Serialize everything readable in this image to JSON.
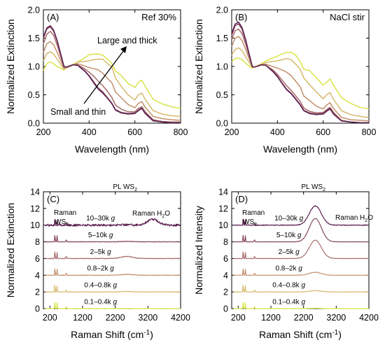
{
  "chart_data": [
    {
      "id": "A",
      "type": "line",
      "panel_label": "(A)",
      "legend_text": "Ref 30%",
      "xlabel": "Wavelength (nm)",
      "ylabel": "Normalized Extinction",
      "xlim": [
        200,
        800
      ],
      "ylim": [
        0,
        2.0
      ],
      "xticks": [
        200,
        400,
        600,
        800
      ],
      "yticks": [
        0.0,
        0.5,
        1.0,
        1.5,
        2.0
      ],
      "ytick_labels": [
        "0.0",
        "0.5",
        "1.0",
        "1.5",
        "2.0"
      ],
      "annotations": [
        "Large and thick",
        "Small and thin"
      ],
      "colors": [
        "#d8e44a",
        "#d6b86a",
        "#c4906c",
        "#a66b6a",
        "#87465e",
        "#5c2050"
      ],
      "series": [
        {
          "x": [
            200,
            215,
            230,
            245,
            260,
            290,
            300,
            330,
            350,
            380,
            400,
            420,
            440,
            460,
            480,
            500,
            515,
            540,
            570,
            600,
            615,
            630,
            645,
            680,
            720,
            760,
            800
          ],
          "values": [
            0.93,
            1.05,
            1.08,
            1.05,
            1.0,
            0.94,
            0.98,
            1.04,
            1.08,
            1.15,
            1.21,
            1.22,
            1.22,
            1.2,
            1.13,
            1.05,
            0.92,
            0.84,
            0.7,
            0.63,
            0.72,
            0.76,
            0.65,
            0.42,
            0.34,
            0.29,
            0.26
          ]
        },
        {
          "x": [
            200,
            215,
            230,
            245,
            260,
            290,
            300,
            330,
            350,
            380,
            400,
            420,
            440,
            460,
            480,
            500,
            515,
            540,
            570,
            600,
            615,
            630,
            645,
            680,
            720,
            760,
            800
          ],
          "values": [
            1.1,
            1.23,
            1.26,
            1.22,
            1.13,
            0.95,
            0.97,
            1.03,
            1.08,
            1.09,
            1.1,
            1.12,
            1.13,
            1.13,
            1.05,
            0.99,
            0.8,
            0.65,
            0.5,
            0.41,
            0.5,
            0.53,
            0.42,
            0.22,
            0.16,
            0.13,
            0.12
          ]
        },
        {
          "x": [
            200,
            215,
            230,
            245,
            260,
            290,
            300,
            330,
            350,
            380,
            400,
            420,
            440,
            460,
            480,
            500,
            515,
            540,
            570,
            600,
            615,
            630,
            645,
            680,
            720,
            760,
            800
          ],
          "values": [
            1.25,
            1.4,
            1.44,
            1.38,
            1.25,
            0.97,
            0.98,
            1.03,
            1.05,
            1.01,
            0.98,
            0.96,
            0.94,
            0.88,
            0.79,
            0.71,
            0.55,
            0.45,
            0.33,
            0.27,
            0.35,
            0.38,
            0.28,
            0.12,
            0.08,
            0.06,
            0.05
          ]
        },
        {
          "x": [
            200,
            215,
            230,
            245,
            260,
            290,
            300,
            330,
            350,
            380,
            400,
            420,
            440,
            460,
            480,
            500,
            515,
            540,
            570,
            600,
            615,
            630,
            645,
            680,
            720,
            760,
            800
          ],
          "values": [
            1.4,
            1.57,
            1.62,
            1.55,
            1.38,
            0.99,
            0.99,
            1.03,
            1.03,
            0.96,
            0.9,
            0.83,
            0.74,
            0.66,
            0.56,
            0.45,
            0.32,
            0.25,
            0.2,
            0.2,
            0.26,
            0.29,
            0.2,
            0.06,
            0.03,
            0.02,
            0.02
          ]
        },
        {
          "x": [
            200,
            215,
            230,
            245,
            260,
            290,
            300,
            330,
            350,
            380,
            400,
            420,
            440,
            460,
            480,
            500,
            515,
            540,
            570,
            600,
            615,
            630,
            645,
            680,
            720,
            760,
            800
          ],
          "values": [
            1.5,
            1.66,
            1.7,
            1.62,
            1.45,
            1.0,
            0.99,
            1.03,
            1.02,
            0.93,
            0.84,
            0.73,
            0.62,
            0.55,
            0.45,
            0.35,
            0.24,
            0.19,
            0.17,
            0.18,
            0.23,
            0.27,
            0.18,
            0.05,
            0.02,
            0.01,
            0.01
          ]
        },
        {
          "x": [
            200,
            215,
            230,
            245,
            260,
            290,
            300,
            330,
            350,
            380,
            400,
            420,
            440,
            460,
            480,
            500,
            515,
            540,
            570,
            600,
            615,
            630,
            645,
            680,
            720,
            760,
            800
          ],
          "values": [
            1.52,
            1.68,
            1.72,
            1.64,
            1.46,
            1.0,
            0.99,
            1.03,
            1.02,
            0.92,
            0.83,
            0.71,
            0.6,
            0.53,
            0.44,
            0.34,
            0.23,
            0.18,
            0.16,
            0.17,
            0.22,
            0.26,
            0.17,
            0.04,
            0.02,
            0.01,
            0.01
          ]
        }
      ]
    },
    {
      "id": "B",
      "type": "line",
      "panel_label": "(B)",
      "legend_text": "NaCl stir",
      "xlabel": "Wavelength (nm)",
      "ylabel": "Normalized Extinction",
      "xlim": [
        200,
        800
      ],
      "ylim": [
        0,
        2.0
      ],
      "xticks": [
        200,
        400,
        600,
        800
      ],
      "yticks": [
        0.0,
        0.5,
        1.0,
        1.5,
        2.0
      ],
      "ytick_labels": [
        "0.0",
        "0.5",
        "1.0",
        "1.5",
        "2.0"
      ],
      "colors": [
        "#d8e44a",
        "#d6b86a",
        "#c4906c",
        "#a66b6a",
        "#87465e",
        "#5c2050"
      ],
      "series": [
        {
          "x": [
            200,
            215,
            230,
            245,
            260,
            290,
            300,
            330,
            350,
            380,
            400,
            420,
            440,
            460,
            480,
            500,
            515,
            540,
            570,
            600,
            615,
            630,
            645,
            680,
            720,
            760,
            800
          ],
          "values": [
            1.08,
            1.14,
            1.15,
            1.12,
            1.06,
            0.97,
            0.99,
            1.05,
            1.1,
            1.15,
            1.18,
            1.22,
            1.25,
            1.25,
            1.2,
            1.08,
            0.95,
            0.93,
            0.8,
            0.67,
            0.72,
            0.78,
            0.67,
            0.45,
            0.35,
            0.28,
            0.25
          ]
        },
        {
          "x": [
            200,
            215,
            230,
            245,
            260,
            290,
            300,
            330,
            350,
            380,
            400,
            420,
            440,
            460,
            480,
            500,
            515,
            540,
            570,
            600,
            615,
            630,
            645,
            680,
            720,
            760,
            800
          ],
          "values": [
            1.2,
            1.3,
            1.33,
            1.28,
            1.18,
            0.98,
            0.99,
            1.04,
            1.07,
            1.09,
            1.1,
            1.12,
            1.14,
            1.12,
            1.04,
            0.95,
            0.8,
            0.68,
            0.55,
            0.43,
            0.5,
            0.54,
            0.42,
            0.22,
            0.15,
            0.12,
            0.1
          ]
        },
        {
          "x": [
            200,
            215,
            230,
            245,
            260,
            290,
            300,
            330,
            350,
            380,
            400,
            420,
            440,
            460,
            480,
            500,
            515,
            540,
            570,
            600,
            615,
            630,
            645,
            680,
            720,
            760,
            800
          ],
          "values": [
            1.35,
            1.5,
            1.53,
            1.46,
            1.31,
            0.99,
            0.99,
            1.03,
            1.04,
            1.0,
            0.97,
            0.94,
            0.9,
            0.84,
            0.74,
            0.64,
            0.48,
            0.4,
            0.3,
            0.25,
            0.32,
            0.36,
            0.26,
            0.1,
            0.06,
            0.05,
            0.04
          ]
        },
        {
          "x": [
            200,
            215,
            230,
            245,
            260,
            290,
            300,
            330,
            350,
            380,
            400,
            420,
            440,
            460,
            480,
            500,
            515,
            540,
            570,
            600,
            615,
            630,
            645,
            680,
            720,
            760,
            800
          ],
          "values": [
            1.48,
            1.63,
            1.66,
            1.58,
            1.41,
            1.0,
            0.99,
            1.03,
            1.02,
            0.94,
            0.86,
            0.76,
            0.66,
            0.58,
            0.48,
            0.38,
            0.27,
            0.21,
            0.18,
            0.19,
            0.24,
            0.28,
            0.19,
            0.05,
            0.02,
            0.01,
            0.01
          ]
        },
        {
          "x": [
            200,
            215,
            230,
            245,
            260,
            290,
            300,
            330,
            350,
            380,
            400,
            420,
            440,
            460,
            480,
            500,
            515,
            540,
            570,
            600,
            615,
            630,
            645,
            680,
            720,
            760,
            800
          ],
          "values": [
            1.55,
            1.72,
            1.75,
            1.66,
            1.47,
            1.0,
            0.99,
            1.03,
            1.02,
            0.92,
            0.83,
            0.71,
            0.6,
            0.53,
            0.43,
            0.33,
            0.23,
            0.18,
            0.16,
            0.17,
            0.22,
            0.26,
            0.17,
            0.04,
            0.02,
            0.01,
            0.01
          ]
        },
        {
          "x": [
            200,
            215,
            230,
            245,
            260,
            290,
            300,
            330,
            350,
            380,
            400,
            420,
            440,
            460,
            480,
            500,
            515,
            540,
            570,
            600,
            615,
            630,
            645,
            680,
            720,
            760,
            800
          ],
          "values": [
            1.58,
            1.75,
            1.78,
            1.69,
            1.49,
            1.0,
            0.99,
            1.03,
            1.02,
            0.91,
            0.82,
            0.7,
            0.59,
            0.52,
            0.42,
            0.32,
            0.22,
            0.17,
            0.15,
            0.16,
            0.21,
            0.25,
            0.16,
            0.04,
            0.02,
            0.01,
            0.01
          ]
        }
      ]
    },
    {
      "id": "C",
      "type": "line",
      "panel_label": "(C)",
      "xlabel": "Raman Shift (cm",
      "xlabel_sup": "-1",
      "xlabel_tail": ")",
      "ylabel": "Normalized Extinction",
      "xlim": [
        0,
        4200
      ],
      "ylim": [
        0,
        14
      ],
      "xticks": [
        200,
        1200,
        2200,
        3200,
        4200
      ],
      "yticks": [
        0,
        2,
        4,
        6,
        8,
        10,
        12,
        14
      ],
      "colors": [
        "#d8e44a",
        "#d6b86a",
        "#c4906c",
        "#a66b6a",
        "#87465e",
        "#5c2050"
      ],
      "labels": {
        "raman": "Raman",
        "ws": "WS",
        "pl": "PL WS",
        "raman_h2o": "Raman H",
        "h2o_tail": "O",
        "sub2": "2"
      },
      "series": [
        {
          "name": "0.1–0.4k",
          "offset": 0,
          "pl_amp": 0.02,
          "h2o_amp": 0.0,
          "noise": 0.05
        },
        {
          "name": "0.4–0.8k",
          "offset": 2,
          "pl_amp": 0.05,
          "h2o_amp": 0.0,
          "noise": 0.05
        },
        {
          "name": "0.8–2k",
          "offset": 4,
          "pl_amp": 0.1,
          "h2o_amp": 0.0,
          "noise": 0.06
        },
        {
          "name": "2–5k",
          "offset": 6,
          "pl_amp": 0.25,
          "h2o_amp": 0.0,
          "noise": 0.06
        },
        {
          "name": "5–10k",
          "offset": 8,
          "pl_amp": 0.05,
          "h2o_amp": 0.0,
          "noise": 0.06
        },
        {
          "name": "10–30k",
          "offset": 10,
          "pl_amp": 0.05,
          "h2o_amp": 0.7,
          "noise": 0.25
        }
      ]
    },
    {
      "id": "D",
      "type": "line",
      "panel_label": "(D)",
      "xlabel": "Raman Shift (cm",
      "xlabel_sup": "-1",
      "xlabel_tail": ")",
      "ylabel": "Normalized Intensity",
      "xlim": [
        0,
        4200
      ],
      "ylim": [
        0,
        14
      ],
      "xticks": [
        200,
        1200,
        2200,
        3200,
        4200
      ],
      "yticks": [
        0,
        2,
        4,
        6,
        8,
        10,
        12,
        14
      ],
      "colors": [
        "#d8e44a",
        "#d6b86a",
        "#c4906c",
        "#a66b6a",
        "#87465e",
        "#5c2050"
      ],
      "labels": {
        "raman": "Raman",
        "ws": "WS",
        "pl": "PL WS",
        "raman_h2o": "Raman H",
        "h2o_tail": "O",
        "sub2": "2"
      },
      "series": [
        {
          "name": "0.1–0.4k",
          "offset": 0,
          "pl_amp": 0.05,
          "h2o_amp": 0.0,
          "noise": 0.03
        },
        {
          "name": "0.4–0.8k",
          "offset": 2,
          "pl_amp": 0.15,
          "h2o_amp": 0.0,
          "noise": 0.03
        },
        {
          "name": "0.8–2k",
          "offset": 4,
          "pl_amp": 0.35,
          "h2o_amp": 0.0,
          "noise": 0.03
        },
        {
          "name": "2–5k",
          "offset": 6,
          "pl_amp": 2.2,
          "h2o_amp": 0.0,
          "noise": 0.03
        },
        {
          "name": "5–10k",
          "offset": 8,
          "pl_amp": 2.8,
          "h2o_amp": 0.0,
          "noise": 0.03
        },
        {
          "name": "10–30k",
          "offset": 10,
          "pl_amp": 2.3,
          "h2o_amp": 0.0,
          "noise": 0.08
        }
      ]
    }
  ],
  "g_label": "g"
}
